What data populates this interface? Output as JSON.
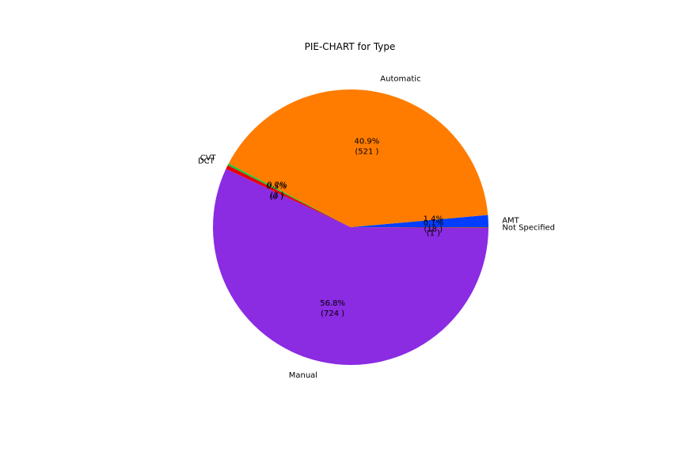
{
  "chart_data": {
    "type": "pie",
    "title": "PIE-CHART for Type",
    "start_angle_deg": 0,
    "direction": "counterclockwise",
    "slices": [
      {
        "label": "AMT",
        "value": 18,
        "pct": "1.4%",
        "count": "(18 )",
        "color": "#023eff"
      },
      {
        "label": "Automatic",
        "value": 521,
        "pct": "40.9%",
        "count": "(521 )",
        "color": "#ff7c00"
      },
      {
        "label": "CVT",
        "value": 3,
        "pct": "0.2%",
        "count": "(3 )",
        "color": "#1ac938"
      },
      {
        "label": "DCT",
        "value": 6,
        "pct": "0.5%",
        "count": "(6 )",
        "color": "#e8000b"
      },
      {
        "label": "Manual",
        "value": 724,
        "pct": "56.8%",
        "count": "(724 )",
        "color": "#8b2be2"
      },
      {
        "label": "Not Specified",
        "value": 1,
        "pct": "0.1%",
        "count": "(1 )",
        "color": "#9f4800"
      }
    ]
  }
}
